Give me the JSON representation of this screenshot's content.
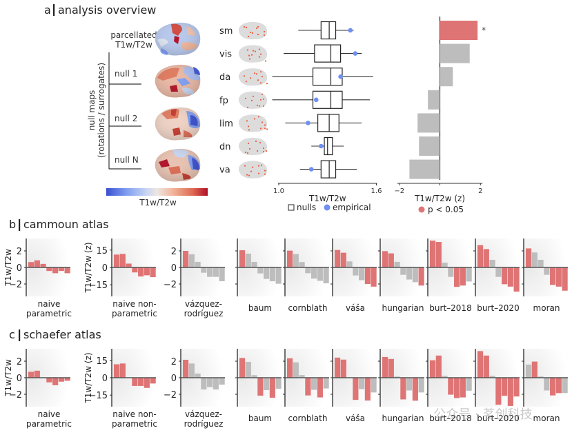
{
  "colors": {
    "significant": "#df7475",
    "nonsignificant": "#bdbdbd",
    "empirical": "#6f8ff3",
    "axis": "#222222",
    "zero_line": "#555555",
    "brain_surface": "#dcdcdc",
    "network_highlight": "#ef5b3b",
    "colormap": [
      "#3a4fd1",
      "#7f9ef0",
      "#c9d6f2",
      "#ece6e2",
      "#f2b79c",
      "#de6a53",
      "#b10f26"
    ]
  },
  "panel_a": {
    "title_letter": "a",
    "title": "analysis overview",
    "brain_labels": {
      "empirical_line1": "parcellated",
      "empirical_line2": "T1w/T2w",
      "null_1": "null 1",
      "null_2": "null 2",
      "null_n": "null N",
      "bracket_line1": "null maps",
      "bracket_line2": "(rotations / surrogates)"
    },
    "colorbar_label": "T1w/T2w",
    "legend": {
      "nulls": "nulls",
      "empirical": "empirical",
      "significance": "p < 0.05"
    },
    "significance_marker": "*"
  },
  "chart_data": [
    {
      "id": "network-boxplots",
      "type": "box",
      "title": "",
      "xlabel": "T1w/T2w",
      "xlim": [
        1.0,
        1.6
      ],
      "xticks": [
        "1.0",
        "1.6"
      ],
      "categories": [
        "sm",
        "vis",
        "da",
        "fp",
        "lim",
        "dn",
        "va"
      ],
      "nulls": [
        {
          "whisker_low": 1.12,
          "q1": 1.26,
          "median": 1.31,
          "q3": 1.35,
          "whisker_high": 1.46
        },
        {
          "whisker_low": 1.03,
          "q1": 1.22,
          "median": 1.32,
          "q3": 1.38,
          "whisker_high": 1.51
        },
        {
          "whisker_low": 0.96,
          "q1": 1.21,
          "median": 1.32,
          "q3": 1.39,
          "whisker_high": 1.58
        },
        {
          "whisker_low": 0.96,
          "q1": 1.21,
          "median": 1.32,
          "q3": 1.39,
          "whisker_high": 1.56
        },
        {
          "whisker_low": 1.04,
          "q1": 1.24,
          "median": 1.31,
          "q3": 1.37,
          "whisker_high": 1.51
        },
        {
          "whisker_low": 1.2,
          "q1": 1.28,
          "median": 1.3,
          "q3": 1.33,
          "whisker_high": 1.4
        },
        {
          "whisker_low": 1.13,
          "q1": 1.26,
          "median": 1.31,
          "q3": 1.35,
          "whisker_high": 1.48
        }
      ],
      "empirical": [
        1.44,
        1.47,
        1.38,
        1.23,
        1.18,
        1.26,
        1.2
      ],
      "legend": [
        "nulls",
        "empirical"
      ]
    },
    {
      "id": "network-zscores",
      "type": "bar",
      "orientation": "horizontal",
      "xlabel": "T1w/T2w (z)",
      "xlim": [
        -2.1,
        2.1
      ],
      "xticks": [
        "−2",
        "2"
      ],
      "categories": [
        "sm",
        "vis",
        "da",
        "fp",
        "lim",
        "dn",
        "va"
      ],
      "values": [
        1.86,
        1.47,
        0.64,
        -0.59,
        -1.1,
        -1.03,
        -1.5
      ],
      "significant": [
        true,
        false,
        false,
        false,
        false,
        false,
        false
      ],
      "annotations": [
        "*",
        "",
        "",
        "",
        "",
        "",
        ""
      ],
      "legend": [
        "p < 0.05"
      ]
    },
    {
      "id": "cammoun-atlas",
      "type": "bar",
      "panel_letter": "b",
      "title": "cammoun atlas",
      "categories": [
        "sm",
        "vis",
        "da",
        "fp",
        "lim",
        "dn",
        "va"
      ],
      "methods": [
        {
          "name": "naive parametric",
          "label_line1": "naive",
          "label_line2": "parametric",
          "ylabel": "T1w/T2w",
          "yticks": [
            "2",
            "0",
            "−2"
          ],
          "ytick_values": [
            2,
            0,
            -2
          ],
          "ylim": [
            -3.5,
            3.5
          ],
          "values": [
            0.65,
            0.86,
            0.43,
            -0.43,
            -0.7,
            -0.43,
            -0.7
          ],
          "significant": [
            true,
            true,
            true,
            true,
            true,
            true,
            true
          ]
        },
        {
          "name": "naive non-parametric",
          "label_line1": "naive non-",
          "label_line2": "parametric",
          "ylabel": "T1w/T2w (z)",
          "yticks": [
            "15",
            "0",
            "−15"
          ],
          "ytick_values": [
            15,
            0,
            -15
          ],
          "ylim": [
            -25,
            25
          ],
          "values": [
            11.1,
            11.7,
            3.3,
            -4.3,
            -7.8,
            -6.8,
            -8.4
          ],
          "significant": [
            true,
            true,
            true,
            true,
            true,
            true,
            true
          ]
        },
        {
          "name": "vázquez-rodríguez",
          "label_line1": "vázquez-",
          "label_line2": "rodríguez",
          "yticks": [
            "2",
            "0",
            "−2"
          ],
          "ytick_values": [
            2,
            0,
            -2
          ],
          "ylim": [
            -3.5,
            3.5
          ],
          "values": [
            2.0,
            1.58,
            0.67,
            -0.64,
            -1.14,
            -1.14,
            -1.67
          ],
          "significant": [
            true,
            false,
            false,
            false,
            false,
            false,
            false
          ]
        },
        {
          "name": "baum",
          "label_line1": "baum",
          "label_line2": "",
          "ytick_values": [
            2,
            0,
            -2
          ],
          "ylim": [
            -3.5,
            3.5
          ],
          "values": [
            2.08,
            1.67,
            0.67,
            -0.72,
            -1.39,
            -1.67,
            -1.97
          ],
          "significant": [
            true,
            false,
            false,
            false,
            false,
            false,
            false
          ]
        },
        {
          "name": "cornblath",
          "label_line1": "cornblath",
          "label_line2": "",
          "ytick_values": [
            2,
            0,
            -2
          ],
          "ylim": [
            -3.5,
            3.5
          ],
          "values": [
            2.03,
            1.62,
            0.65,
            -0.7,
            -1.35,
            -1.62,
            -1.92
          ],
          "significant": [
            true,
            false,
            false,
            false,
            false,
            false,
            false
          ]
        },
        {
          "name": "váša",
          "label_line1": "váša",
          "label_line2": "",
          "ytick_values": [
            2,
            0,
            -2
          ],
          "ylim": [
            -3.5,
            3.5
          ],
          "values": [
            2.11,
            1.78,
            0.73,
            -0.97,
            -1.54,
            -2.0,
            -2.32
          ],
          "significant": [
            true,
            true,
            false,
            false,
            false,
            true,
            true
          ]
        },
        {
          "name": "hungarian",
          "label_line1": "hungarian",
          "label_line2": "",
          "ytick_values": [
            2,
            0,
            -2
          ],
          "ylim": [
            -3.5,
            3.5
          ],
          "values": [
            1.97,
            1.7,
            0.68,
            -0.89,
            -1.46,
            -1.78,
            -2.19
          ],
          "significant": [
            true,
            true,
            false,
            false,
            false,
            false,
            true
          ]
        },
        {
          "name": "burt–2018",
          "label_line1": "burt–2018",
          "label_line2": "",
          "ytick_values": [
            2,
            0,
            -2
          ],
          "ylim": [
            -3.5,
            3.5
          ],
          "values": [
            3.24,
            3.08,
            0.57,
            -1.14,
            -2.35,
            -2.19,
            -1.7
          ],
          "significant": [
            true,
            true,
            false,
            false,
            true,
            true,
            false
          ]
        },
        {
          "name": "burt–2020",
          "label_line1": "burt–2020",
          "label_line2": "",
          "ytick_values": [
            2,
            0,
            -2
          ],
          "ylim": [
            -3.5,
            3.5
          ],
          "values": [
            2.7,
            2.22,
            0.92,
            -1.14,
            -2.03,
            -2.32,
            -2.92
          ],
          "significant": [
            true,
            true,
            false,
            false,
            true,
            true,
            true
          ]
        },
        {
          "name": "moran",
          "label_line1": "moran",
          "label_line2": "",
          "ytick_values": [
            2,
            0,
            -2
          ],
          "ylim": [
            -3.5,
            3.5
          ],
          "values": [
            2.3,
            1.81,
            0.92,
            -0.89,
            -2.11,
            -2.32,
            -2.81
          ],
          "significant": [
            true,
            false,
            false,
            false,
            true,
            true,
            true
          ]
        }
      ]
    },
    {
      "id": "schaefer-atlas",
      "type": "bar",
      "panel_letter": "c",
      "title": "schaefer atlas",
      "categories": [
        "sm",
        "vis",
        "da",
        "fp",
        "lim",
        "dn",
        "va"
      ],
      "methods": [
        {
          "name": "naive parametric",
          "label_line1": "naive",
          "label_line2": "parametric",
          "ylabel": "T1w/T2w",
          "yticks": [
            "2",
            "0",
            "−2"
          ],
          "ytick_values": [
            2,
            0,
            -2
          ],
          "ylim": [
            -3.5,
            3.5
          ],
          "values": [
            0.72,
            0.85,
            0.02,
            -0.56,
            -0.91,
            -0.48,
            -0.37
          ],
          "significant": [
            true,
            true,
            true,
            true,
            true,
            true,
            true
          ]
        },
        {
          "name": "naive non-parametric",
          "label_line1": "naive non-",
          "label_line2": "parametric",
          "ylabel": "T1w/T2w (z)",
          "yticks": [
            "15",
            "0",
            "−15"
          ],
          "ytick_values": [
            15,
            0,
            -15
          ],
          "ylim": [
            -25,
            25
          ],
          "values": [
            11.6,
            12.3,
            0.3,
            -7.1,
            -7.1,
            -8.8,
            -5.0
          ],
          "significant": [
            true,
            true,
            true,
            true,
            true,
            true,
            true
          ]
        },
        {
          "name": "vázquez-rodríguez",
          "label_line1": "vázquez-",
          "label_line2": "rodríguez",
          "yticks": [
            "2",
            "0",
            "−2"
          ],
          "ytick_values": [
            2,
            0,
            -2
          ],
          "ylim": [
            -3.5,
            3.5
          ],
          "values": [
            2.17,
            1.72,
            0.5,
            -1.42,
            -1.14,
            -1.42,
            -0.83
          ],
          "significant": [
            true,
            false,
            false,
            false,
            false,
            false,
            false
          ]
        },
        {
          "name": "baum",
          "label_line1": "baum",
          "label_line2": "",
          "ytick_values": [
            2,
            0,
            -2
          ],
          "ylim": [
            -3.5,
            3.5
          ],
          "values": [
            2.39,
            1.92,
            0.31,
            -2.17,
            -1.5,
            -2.42,
            -1.33
          ],
          "significant": [
            true,
            false,
            false,
            true,
            false,
            true,
            false
          ]
        },
        {
          "name": "cornblath",
          "label_line1": "cornblath",
          "label_line2": "",
          "ytick_values": [
            2,
            0,
            -2
          ],
          "ylim": [
            -3.5,
            3.5
          ],
          "values": [
            2.35,
            1.86,
            0.32,
            -2.14,
            -1.46,
            -2.38,
            -1.3
          ],
          "significant": [
            true,
            false,
            false,
            true,
            false,
            true,
            false
          ]
        },
        {
          "name": "váša",
          "label_line1": "váša",
          "label_line2": "",
          "ytick_values": [
            2,
            0,
            -2
          ],
          "ylim": [
            -3.5,
            3.5
          ],
          "values": [
            2.43,
            2.19,
            0.02,
            -2.68,
            -1.38,
            -2.76,
            -1.78
          ],
          "significant": [
            true,
            true,
            false,
            true,
            false,
            true,
            false
          ]
        },
        {
          "name": "hungarian",
          "label_line1": "hungarian",
          "label_line2": "",
          "ytick_values": [
            2,
            0,
            -2
          ],
          "ylim": [
            -3.5,
            3.5
          ],
          "values": [
            2.51,
            2.27,
            0.14,
            -2.62,
            -1.54,
            -2.78,
            -1.78
          ],
          "significant": [
            true,
            true,
            false,
            true,
            false,
            true,
            false
          ]
        },
        {
          "name": "burt–2018",
          "label_line1": "burt–2018",
          "label_line2": "",
          "ytick_values": [
            2,
            0,
            -2
          ],
          "ylim": [
            -3.5,
            3.5
          ],
          "values": [
            2.11,
            2.68,
            0.22,
            -2.05,
            -2.46,
            -2.38,
            -1.57
          ],
          "significant": [
            true,
            true,
            false,
            true,
            true,
            true,
            false
          ]
        },
        {
          "name": "burt–2020",
          "label_line1": "burt–2020",
          "label_line2": "",
          "ytick_values": [
            2,
            0,
            -2
          ],
          "ylim": [
            -3.5,
            3.5
          ],
          "values": [
            3.22,
            2.68,
            0.22,
            -3.27,
            -2.19,
            -3.41,
            -2.27
          ],
          "significant": [
            true,
            true,
            false,
            true,
            true,
            true,
            true
          ]
        },
        {
          "name": "moran",
          "label_line1": "moran",
          "label_line2": "",
          "ytick_values": [
            2,
            0,
            -2
          ],
          "ylim": [
            -3.5,
            3.5
          ],
          "values": [
            1.59,
            1.95,
            0.14,
            -1.54,
            -2.14,
            -1.86,
            -1.86
          ],
          "significant": [
            false,
            true,
            false,
            false,
            true,
            true,
            false
          ]
        }
      ]
    }
  ],
  "watermark": "公众号 · 茗创科技"
}
